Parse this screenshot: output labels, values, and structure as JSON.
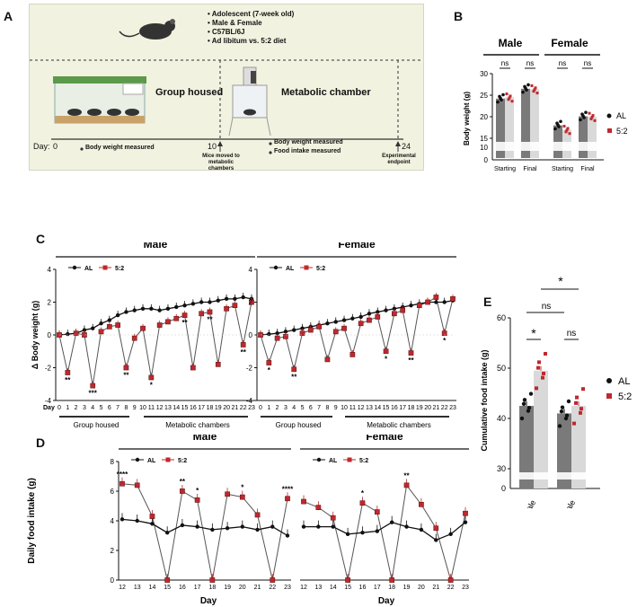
{
  "panel_labels": {
    "a": "A",
    "b": "B",
    "c": "C",
    "d": "D",
    "e": "E"
  },
  "panelA": {
    "bullets": [
      "Adolescent (7-week old)",
      "Male & Female",
      "C57BL/6J",
      "Ad libitum vs. 5:2 diet"
    ],
    "group_housed": "Group housed",
    "metabolic_chamber": "Metabolic chamber",
    "day_label": "Day:",
    "day0": "0",
    "day10": "10",
    "day24": "24",
    "note_bw": "Body weight measured",
    "note_bw2": "Body weight measured",
    "note_food": "Food intake measured",
    "moved": [
      "Mice moved to",
      "metabolic",
      "chambers"
    ],
    "endpoint": [
      "Experimental",
      "endpoint"
    ]
  },
  "colors": {
    "al": "#111111",
    "fiveTwo": "#c0282d",
    "barDark": "#7a7a7a",
    "barLight": "#d9d9d9",
    "bgA": "#f2f2e0"
  },
  "chart_data": [
    {
      "id": "B",
      "type": "bar",
      "ylabel": "Body weight (g)",
      "yticks": [
        "30",
        "25",
        "20",
        "15",
        "10",
        "0"
      ],
      "groups": [
        "Male",
        "Female"
      ],
      "categories": [
        "Starting",
        "Final",
        "Starting",
        "Final"
      ],
      "series": [
        {
          "name": "AL",
          "values": [
            24.2,
            26.5,
            18.0,
            20.1
          ]
        },
        {
          "name": "5:2",
          "values": [
            24.5,
            26.4,
            17.0,
            20.0
          ]
        }
      ],
      "significance": [
        "ns",
        "ns",
        "ns",
        "ns"
      ],
      "legend": [
        "AL",
        "5:2"
      ]
    },
    {
      "id": "C",
      "type": "line",
      "ylabel": "Δ Body weight (g)",
      "yticks": [
        "4",
        "2",
        "0",
        "-2",
        "-4"
      ],
      "panels": [
        {
          "title": "Male",
          "days": [
            "0",
            "1",
            "2",
            "3",
            "4",
            "5",
            "6",
            "7",
            "8",
            "9",
            "10",
            "11",
            "12",
            "13",
            "14",
            "15",
            "16",
            "17",
            "18",
            "19",
            "20",
            "21",
            "22",
            "23"
          ],
          "AL": [
            0,
            0.05,
            0.1,
            0.3,
            0.4,
            0.7,
            0.9,
            1.2,
            1.4,
            1.5,
            1.6,
            1.6,
            1.5,
            1.6,
            1.7,
            1.8,
            1.9,
            2.0,
            2.0,
            2.1,
            2.2,
            2.2,
            2.3,
            2.2
          ],
          "FT": [
            0,
            -2.3,
            0.1,
            0.0,
            -3.1,
            0.2,
            0.5,
            0.6,
            -2.0,
            -0.2,
            0.4,
            -2.6,
            0.6,
            0.8,
            1.0,
            1.2,
            -2.0,
            1.3,
            1.4,
            -1.8,
            1.6,
            1.8,
            -0.6,
            2.0
          ],
          "stars": [
            {
              "day": 1,
              "text": "**"
            },
            {
              "day": 4,
              "text": "***"
            },
            {
              "day": 8,
              "text": "**"
            },
            {
              "day": 11,
              "text": "*"
            },
            {
              "day": 15,
              "text": "**"
            },
            {
              "day": 18,
              "text": "**"
            },
            {
              "day": 22,
              "text": "**"
            }
          ],
          "phases": [
            "Group housed",
            "Metabolic chambers"
          ]
        },
        {
          "title": "Female",
          "days": [
            "0",
            "1",
            "2",
            "3",
            "4",
            "5",
            "6",
            "7",
            "8",
            "9",
            "10",
            "11",
            "12",
            "13",
            "14",
            "15",
            "16",
            "17",
            "18",
            "19",
            "20",
            "21",
            "22",
            "23"
          ],
          "AL": [
            0,
            0.05,
            0.1,
            0.2,
            0.3,
            0.4,
            0.5,
            0.6,
            0.7,
            0.8,
            0.9,
            1.0,
            1.1,
            1.3,
            1.4,
            1.5,
            1.6,
            1.7,
            1.8,
            1.9,
            2.0,
            2.0,
            2.0,
            2.1
          ],
          "FT": [
            0,
            -1.7,
            -0.2,
            -0.1,
            -2.1,
            0.1,
            0.3,
            0.5,
            -1.5,
            0.2,
            0.4,
            -1.2,
            0.7,
            0.9,
            1.1,
            -1.0,
            1.3,
            1.5,
            -1.1,
            1.8,
            2.0,
            2.3,
            0.1,
            2.2
          ],
          "stars": [
            {
              "day": 1,
              "text": "*"
            },
            {
              "day": 4,
              "text": "**"
            },
            {
              "day": 15,
              "text": "*"
            },
            {
              "day": 18,
              "text": "**"
            },
            {
              "day": 22,
              "text": "*"
            }
          ],
          "phases": [
            "Group housed",
            "Metabolic chambers"
          ]
        }
      ],
      "legend": [
        "AL",
        "5:2"
      ],
      "xlabel": "Day"
    },
    {
      "id": "D",
      "type": "line",
      "ylabel": "Daily food intake (g)",
      "yticks": [
        "8",
        "6",
        "4",
        "2",
        "0"
      ],
      "xlabel": "Day",
      "panels": [
        {
          "title": "Male",
          "days": [
            "12",
            "13",
            "14",
            "15",
            "16",
            "17",
            "18",
            "19",
            "20",
            "21",
            "22",
            "23"
          ],
          "AL": [
            4.1,
            4.0,
            3.8,
            3.2,
            3.7,
            3.6,
            3.4,
            3.5,
            3.6,
            3.4,
            3.6,
            3.0
          ],
          "FT": [
            6.5,
            6.4,
            4.3,
            0.0,
            6.0,
            5.4,
            0.0,
            5.8,
            5.6,
            4.4,
            0.0,
            5.5
          ],
          "stars": [
            {
              "day": 0,
              "text": "****"
            },
            {
              "day": 4,
              "text": "**"
            },
            {
              "day": 5,
              "text": "*"
            },
            {
              "day": 8,
              "text": "*"
            },
            {
              "day": 11,
              "text": "****"
            }
          ]
        },
        {
          "title": "Female",
          "days": [
            "12",
            "13",
            "14",
            "15",
            "16",
            "17",
            "18",
            "19",
            "20",
            "21",
            "22",
            "23"
          ],
          "AL": [
            3.6,
            3.6,
            3.6,
            3.1,
            3.2,
            3.3,
            3.9,
            3.6,
            3.4,
            2.7,
            3.1,
            3.9
          ],
          "FT": [
            5.3,
            4.9,
            4.2,
            0.0,
            5.2,
            4.6,
            0.0,
            6.4,
            5.1,
            3.5,
            0.0,
            4.5
          ],
          "stars": [
            {
              "day": 4,
              "text": "*"
            },
            {
              "day": 7,
              "text": "**"
            }
          ]
        }
      ],
      "legend": [
        "AL",
        "5:2"
      ]
    },
    {
      "id": "E",
      "type": "bar",
      "ylabel": "Cumulative food intake (g)",
      "yticks": [
        "60",
        "50",
        "40",
        "30",
        "0"
      ],
      "categories": [
        "Male",
        "Female"
      ],
      "series": [
        {
          "name": "AL",
          "values": [
            42.5,
            41.0
          ]
        },
        {
          "name": "5:2",
          "values": [
            49.5,
            42.5
          ]
        }
      ],
      "significance": {
        "male_inner": "*",
        "female_inner": "ns",
        "across_ns": "ns",
        "across_star": "*"
      },
      "legend": [
        "AL",
        "5:2"
      ]
    }
  ]
}
